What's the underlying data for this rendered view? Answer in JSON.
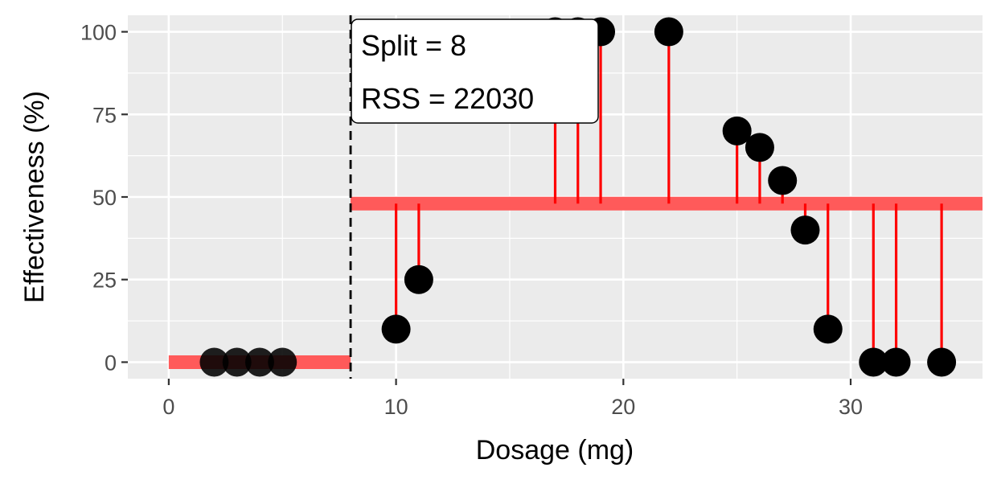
{
  "chart_data": {
    "type": "scatter",
    "xlabel": "Dosage (mg)",
    "ylabel": "Effectiveness (%)",
    "xlim": [
      -1.8,
      35.8
    ],
    "ylim": [
      -5,
      105
    ],
    "x_ticks": [
      0,
      10,
      20,
      30
    ],
    "y_ticks": [
      0,
      25,
      50,
      75,
      100
    ],
    "grid": true,
    "points": {
      "x": [
        2,
        3,
        4,
        5,
        10,
        11,
        17,
        18,
        19,
        22,
        25,
        26,
        27,
        28,
        29,
        31,
        32,
        34
      ],
      "y": [
        0,
        0,
        0,
        0,
        10,
        25,
        100,
        100,
        100,
        100,
        70,
        65,
        55,
        40,
        10,
        0,
        0,
        0
      ],
      "color": "#000000"
    },
    "split": {
      "x": 8,
      "left_mean": 0,
      "right_mean": 48,
      "line_color": "#000000"
    },
    "fit_segments": [
      {
        "x_start": 0,
        "x_end": 8,
        "y": 0
      },
      {
        "x_start": 8,
        "x_end": 35.8,
        "y": 48
      }
    ],
    "fit_color": "#ff5a5a",
    "residual_color": "#ff0000",
    "annotation": {
      "lines": [
        "Split = 8",
        "RSS = 22030"
      ]
    },
    "panel_background": "#ebebeb",
    "gridline_color": "#ffffff"
  }
}
